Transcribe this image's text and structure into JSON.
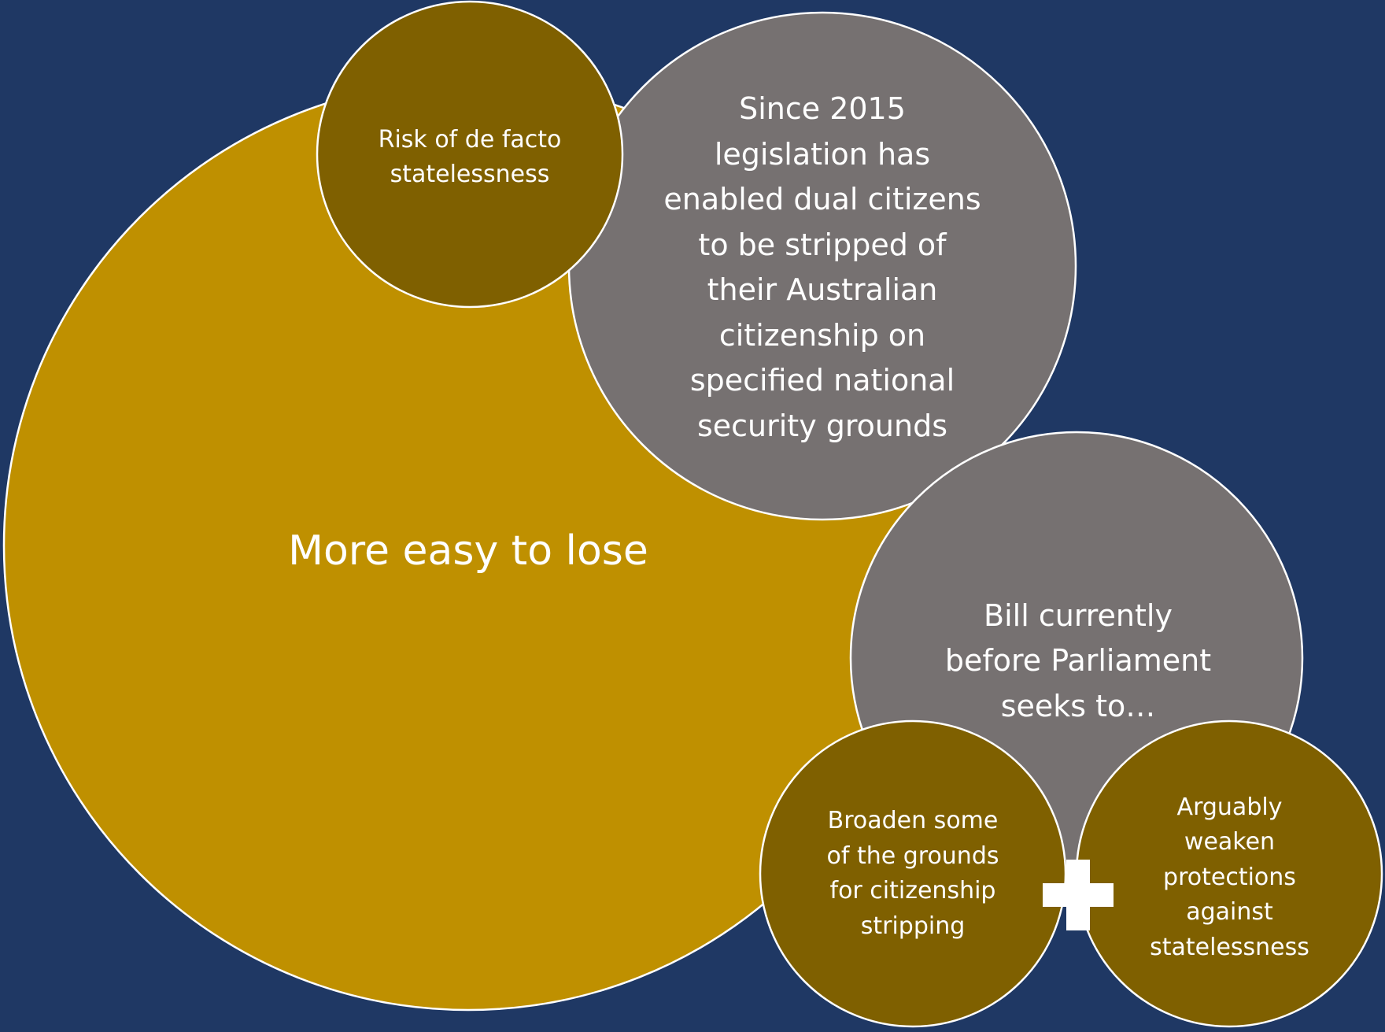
{
  "colors": {
    "background": "#1f3864",
    "gold": "#bf9000",
    "dark_gold": "#7f6000",
    "gray": "#767171",
    "outline": "#ffffff",
    "text": "#ffffff"
  },
  "diagram": {
    "main_circle": {
      "label": "More easy to lose"
    },
    "risk_circle": {
      "label": "Risk of de facto\nstatelessness"
    },
    "since_circle": {
      "label": "Since 2015\nlegislation has\nenabled dual citizens\nto be stripped of\ntheir Australian\ncitizenship on\nspecified national\nsecurity grounds"
    },
    "bill_circle": {
      "label": "Bill currently\nbefore Parliament\nseeks to…"
    },
    "broaden_circle": {
      "label": "Broaden some\nof the grounds\nfor citizenship\nstripping"
    },
    "arguably_circle": {
      "label": "Arguably\nweaken\nprotections\nagainst\nstatelessness"
    },
    "connector": {
      "icon": "plus-icon"
    }
  }
}
